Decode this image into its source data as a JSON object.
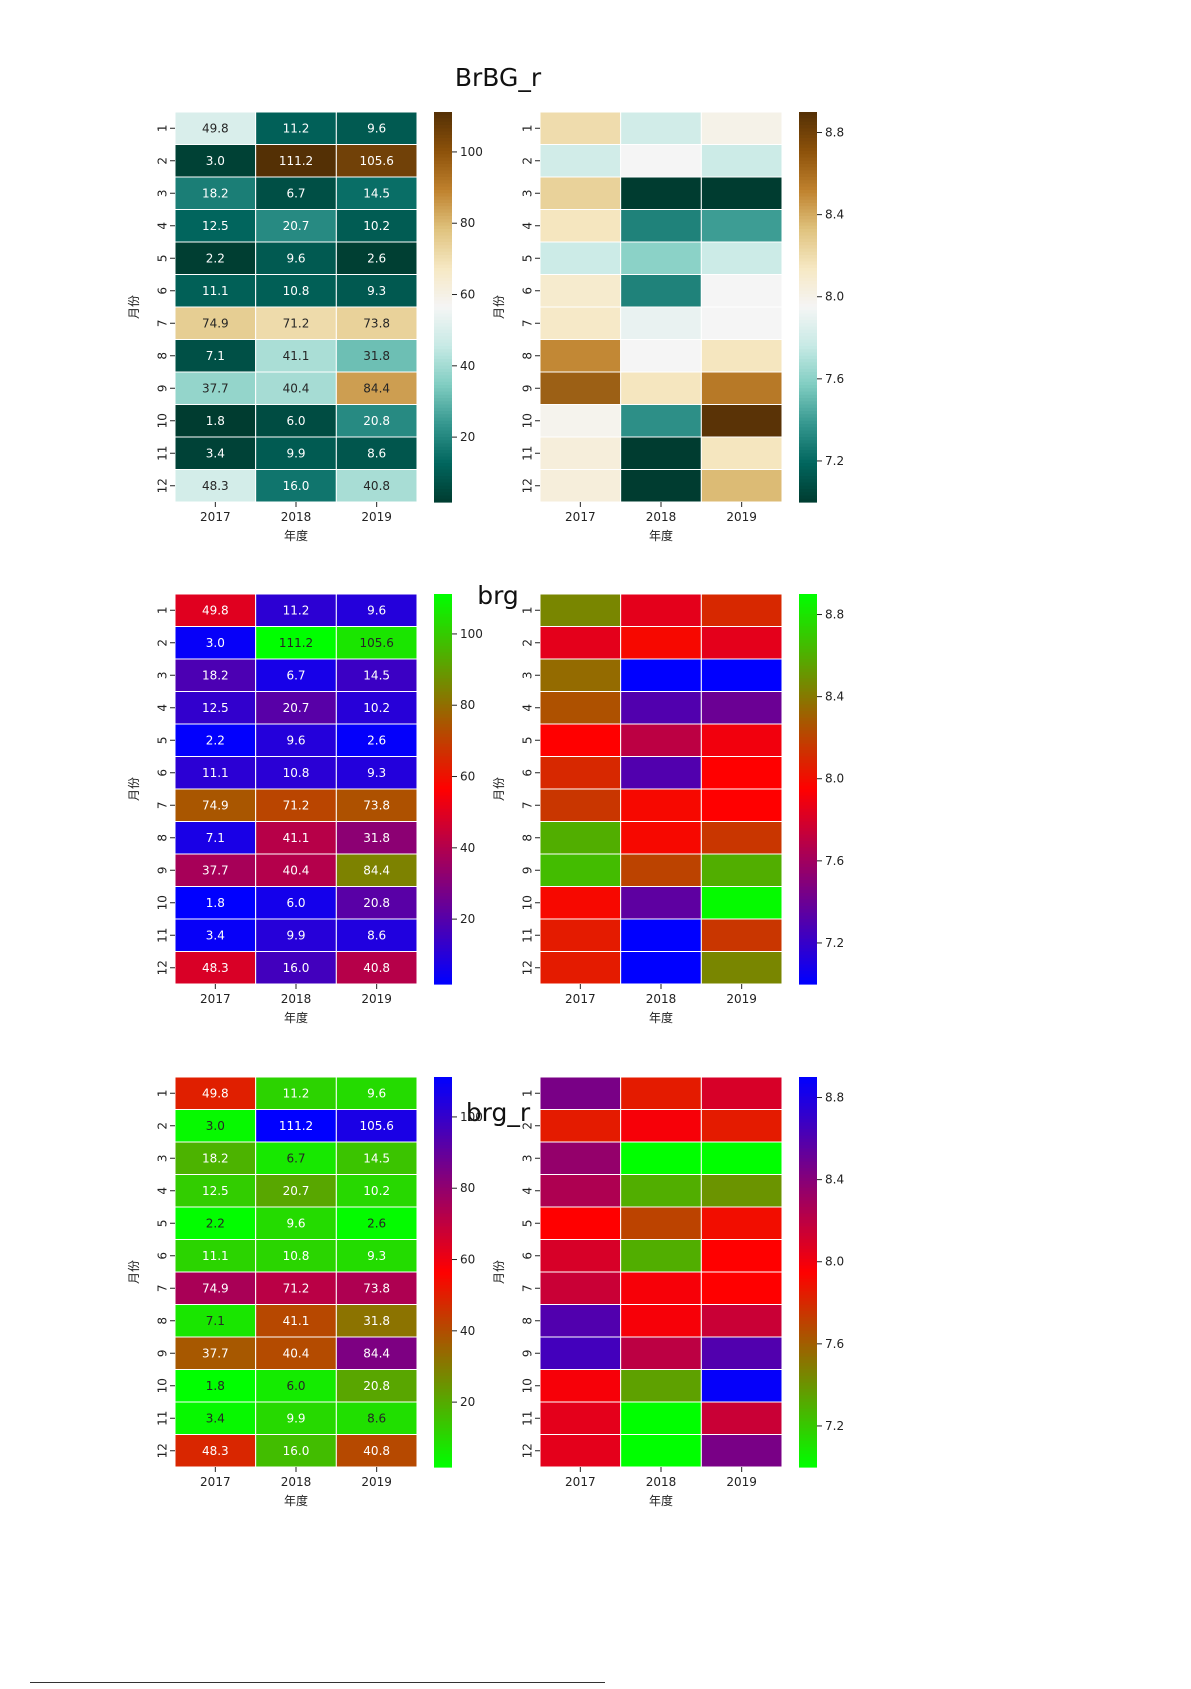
{
  "page": {
    "footnote_rule": ""
  },
  "chart_data": [
    {
      "type": "heatmap",
      "title": "BrBG_r",
      "colormap": "BrBG_r",
      "xlabel": "年度",
      "ylabel": "月份",
      "x_categories": [
        "2017",
        "2018",
        "2019"
      ],
      "y_categories": [
        "1",
        "2",
        "3",
        "4",
        "5",
        "6",
        "7",
        "8",
        "9",
        "10",
        "11",
        "12"
      ],
      "annotated_values": [
        [
          49.8,
          11.2,
          9.6
        ],
        [
          3.0,
          111.2,
          105.6
        ],
        [
          18.2,
          6.7,
          14.5
        ],
        [
          12.5,
          20.7,
          10.2
        ],
        [
          2.2,
          9.6,
          2.6
        ],
        [
          11.1,
          10.8,
          9.3
        ],
        [
          74.9,
          71.2,
          73.8
        ],
        [
          7.1,
          41.1,
          31.8
        ],
        [
          37.7,
          40.4,
          84.4
        ],
        [
          1.8,
          6.0,
          20.8
        ],
        [
          3.4,
          9.9,
          8.6
        ],
        [
          48.3,
          16.0,
          40.8
        ]
      ],
      "annotated_vmin": 1.8,
      "annotated_vmax": 111.2,
      "annotated_colorbar_ticks": [
        "20",
        "40",
        "60",
        "80",
        "100"
      ],
      "log_values": [
        [
          8.2,
          7.8,
          8.0
        ],
        [
          7.8,
          7.95,
          7.78
        ],
        [
          8.25,
          7.0,
          7.0
        ],
        [
          8.15,
          7.3,
          7.4
        ],
        [
          7.78,
          7.6,
          7.78
        ],
        [
          8.1,
          7.3,
          7.95
        ],
        [
          8.12,
          7.9,
          7.95
        ],
        [
          8.5,
          7.95,
          8.15
        ],
        [
          8.65,
          8.15,
          8.55
        ],
        [
          7.98,
          7.35,
          8.88
        ],
        [
          8.05,
          7.0,
          8.15
        ],
        [
          8.05,
          7.0,
          8.35
        ]
      ],
      "log_vmin": 7.0,
      "log_vmax": 8.9,
      "log_colorbar_ticks": [
        "7.2",
        "7.6",
        "8.0",
        "8.4",
        "8.8"
      ]
    },
    {
      "type": "heatmap",
      "title": "brg",
      "colormap": "brg",
      "xlabel": "年度",
      "ylabel": "月份",
      "x_categories": [
        "2017",
        "2018",
        "2019"
      ],
      "y_categories": [
        "1",
        "2",
        "3",
        "4",
        "5",
        "6",
        "7",
        "8",
        "9",
        "10",
        "11",
        "12"
      ],
      "annotated_values": [
        [
          49.8,
          11.2,
          9.6
        ],
        [
          3.0,
          111.2,
          105.6
        ],
        [
          18.2,
          6.7,
          14.5
        ],
        [
          12.5,
          20.7,
          10.2
        ],
        [
          2.2,
          9.6,
          2.6
        ],
        [
          11.1,
          10.8,
          9.3
        ],
        [
          74.9,
          71.2,
          73.8
        ],
        [
          7.1,
          41.1,
          31.8
        ],
        [
          37.7,
          40.4,
          84.4
        ],
        [
          1.8,
          6.0,
          20.8
        ],
        [
          3.4,
          9.9,
          8.6
        ],
        [
          48.3,
          16.0,
          40.8
        ]
      ],
      "annotated_vmin": 1.8,
      "annotated_vmax": 111.2,
      "annotated_colorbar_ticks": [
        "20",
        "40",
        "60",
        "80",
        "100"
      ],
      "log_values": [
        [
          8.45,
          7.85,
          8.1
        ],
        [
          7.85,
          7.98,
          7.85
        ],
        [
          8.35,
          7.0,
          7.0
        ],
        [
          8.25,
          7.3,
          7.4
        ],
        [
          7.95,
          7.7,
          7.9
        ],
        [
          8.1,
          7.3,
          7.95
        ],
        [
          8.15,
          7.98,
          7.95
        ],
        [
          8.6,
          7.98,
          8.15
        ],
        [
          8.65,
          8.2,
          8.6
        ],
        [
          7.98,
          7.35,
          8.88
        ],
        [
          8.05,
          7.0,
          8.15
        ],
        [
          8.05,
          7.0,
          8.45
        ]
      ],
      "log_vmin": 7.0,
      "log_vmax": 8.9,
      "log_colorbar_ticks": [
        "7.2",
        "7.6",
        "8.0",
        "8.4",
        "8.8"
      ]
    },
    {
      "type": "heatmap",
      "title": "brg_r",
      "colormap": "brg_r",
      "xlabel": "年度",
      "ylabel": "月份",
      "x_categories": [
        "2017",
        "2018",
        "2019"
      ],
      "y_categories": [
        "1",
        "2",
        "3",
        "4",
        "5",
        "6",
        "7",
        "8",
        "9",
        "10",
        "11",
        "12"
      ],
      "annotated_values": [
        [
          49.8,
          11.2,
          9.6
        ],
        [
          3.0,
          111.2,
          105.6
        ],
        [
          18.2,
          6.7,
          14.5
        ],
        [
          12.5,
          20.7,
          10.2
        ],
        [
          2.2,
          9.6,
          2.6
        ],
        [
          11.1,
          10.8,
          9.3
        ],
        [
          74.9,
          71.2,
          73.8
        ],
        [
          7.1,
          41.1,
          31.8
        ],
        [
          37.7,
          40.4,
          84.4
        ],
        [
          1.8,
          6.0,
          20.8
        ],
        [
          3.4,
          9.9,
          8.6
        ],
        [
          48.3,
          16.0,
          40.8
        ]
      ],
      "annotated_vmin": 1.8,
      "annotated_vmax": 111.2,
      "annotated_colorbar_ticks": [
        "20",
        "40",
        "60",
        "80",
        "100"
      ],
      "log_values": [
        [
          8.45,
          7.85,
          8.1
        ],
        [
          7.85,
          7.98,
          7.85
        ],
        [
          8.35,
          7.0,
          7.0
        ],
        [
          8.25,
          7.3,
          7.4
        ],
        [
          7.95,
          7.7,
          7.9
        ],
        [
          8.1,
          7.3,
          7.95
        ],
        [
          8.15,
          7.98,
          7.95
        ],
        [
          8.6,
          7.98,
          8.15
        ],
        [
          8.65,
          8.2,
          8.6
        ],
        [
          7.98,
          7.35,
          8.88
        ],
        [
          8.05,
          7.0,
          8.15
        ],
        [
          8.05,
          7.0,
          8.45
        ]
      ],
      "log_vmin": 7.0,
      "log_vmax": 8.9,
      "log_colorbar_ticks": [
        "7.2",
        "7.6",
        "8.0",
        "8.4",
        "8.8"
      ]
    }
  ]
}
